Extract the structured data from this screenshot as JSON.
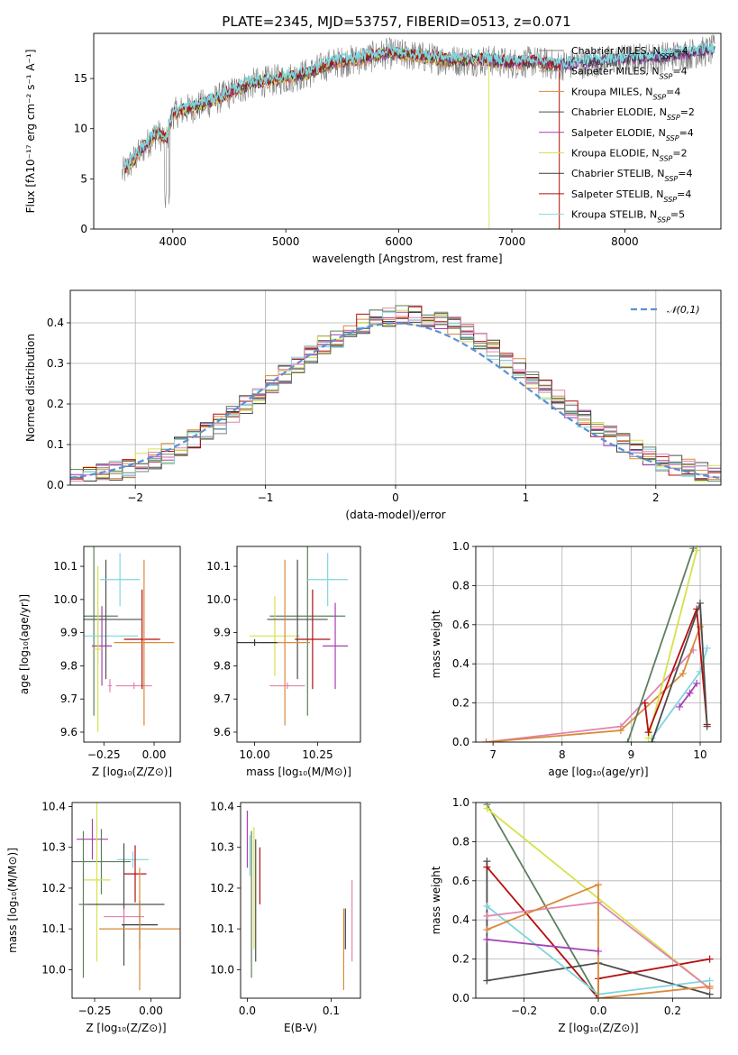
{
  "title": "PLATE=2345, MJD=53757, FIBERID=0513, z=0.071",
  "series_colors": [
    "#7f7f7f",
    "#9d9d9d",
    "#d98a3a",
    "#4d4d4d",
    "#a83fb5",
    "#d6e24a",
    "#3a3a3a",
    "#b40f0f",
    "#7fd6de"
  ],
  "chart_data": [
    {
      "type": "line",
      "title": "PLATE=2345, MJD=53757, FIBERID=0513, z=0.071",
      "xlabel": "wavelength [Angstrom, rest frame]",
      "ylabel": "Flux [fλ10⁻¹⁷ erg cm⁻² s⁻¹ A⁻¹]",
      "xlim": [
        3300,
        8850
      ],
      "ylim": [
        0,
        19.5
      ],
      "xticks": [
        4000,
        5000,
        6000,
        7000,
        8000
      ],
      "yticks": [
        0,
        5,
        10,
        15
      ],
      "legend_position": "top-right",
      "grid": false,
      "legend": [
        {
          "base": "Chabrier MILES, N",
          "sub": "SSP",
          "tail": "=4",
          "color": "#7f7f7f"
        },
        {
          "base": "Salpeter MILES, N",
          "sub": "SSP",
          "tail": "=4",
          "color": "#9d9d9d"
        },
        {
          "base": "Kroupa MILES, N",
          "sub": "SSP",
          "tail": "=4",
          "color": "#d98a3a"
        },
        {
          "base": "Chabrier ELODIE, N",
          "sub": "SSP",
          "tail": "=2",
          "color": "#4d4d4d"
        },
        {
          "base": "Salpeter ELODIE, N",
          "sub": "SSP",
          "tail": "=4",
          "color": "#a83fb5"
        },
        {
          "base": "Kroupa ELODIE, N",
          "sub": "SSP",
          "tail": "=2",
          "color": "#d6e24a"
        },
        {
          "base": "Chabrier STELIB, N",
          "sub": "SSP",
          "tail": "=4",
          "color": "#3a3a3a"
        },
        {
          "base": "Salpeter STELIB, N",
          "sub": "SSP",
          "tail": "=4",
          "color": "#b40f0f"
        },
        {
          "base": "Kroupa STELIB, N",
          "sub": "SSP",
          "tail": "=5",
          "color": "#7fd6de"
        }
      ],
      "spectrum_continuum": {
        "x": [
          3550,
          3700,
          3850,
          3950,
          4000,
          4150,
          4300,
          4500,
          4700,
          5000,
          5200,
          5400,
          5700,
          5900,
          6100,
          6300,
          6500,
          6800,
          7000,
          7200,
          7400,
          7700,
          8000,
          8300,
          8800
        ],
        "y": [
          5.5,
          7.5,
          9.5,
          9.0,
          11.5,
          12.0,
          12.5,
          13.5,
          14.5,
          15.0,
          15.5,
          16.5,
          17.0,
          17.5,
          17.3,
          17.0,
          16.8,
          16.8,
          16.5,
          16.7,
          16.3,
          16.6,
          16.9,
          17.1,
          17.8
        ]
      }
    },
    {
      "type": "step",
      "xlabel": "(data-model)/error",
      "ylabel": "Normed distribution",
      "xlim": [
        -2.5,
        2.5
      ],
      "ylim": [
        0,
        0.48
      ],
      "xticks": [
        -2,
        -1,
        0,
        1,
        2
      ],
      "xtick_labels": [
        "−2",
        "−1",
        "0",
        "1",
        "2"
      ],
      "yticks": [
        0.0,
        0.1,
        0.2,
        0.3,
        0.4
      ],
      "grid": true,
      "legend_position": "top-right",
      "reference_curve": {
        "label": "𝒩(0,1)",
        "color": "#5b8fd6",
        "style": "dashed"
      },
      "bin_width": 0.1,
      "n_bins": 50
    },
    {
      "type": "errorbar",
      "xlabel": "Z [log₁₀(Z/Z⊙)]",
      "ylabel": "age  [log₁₀(age/yr)]",
      "xlim": [
        -0.35,
        0.13
      ],
      "ylim": [
        9.57,
        10.16
      ],
      "xticks": [
        -0.25,
        0.0
      ],
      "xtick_labels": [
        "−0.25",
        "0.00"
      ],
      "yticks": [
        9.6,
        9.7,
        9.8,
        9.9,
        10.0,
        10.1
      ],
      "points": [
        {
          "x": -0.3,
          "y": 9.95,
          "xerr": 0.12,
          "yerr": 0.3,
          "color": "#5e7f5e"
        },
        {
          "x": -0.28,
          "y": 9.89,
          "xerr": 0.2,
          "yerr": 0.08,
          "color": "#7fd6de"
        },
        {
          "x": -0.26,
          "y": 9.86,
          "xerr": 0.05,
          "yerr": 0.12,
          "color": "#a83fb5"
        },
        {
          "x": -0.24,
          "y": 9.94,
          "xerr": 0.18,
          "yerr": 0.18,
          "color": "#4d4d4d"
        },
        {
          "x": -0.17,
          "y": 10.06,
          "xerr": 0.1,
          "yerr": 0.08,
          "color": "#7fd6de"
        },
        {
          "x": -0.22,
          "y": 9.74,
          "xerr": 0.01,
          "yerr": 0.02,
          "color": "#e284b0"
        },
        {
          "x": -0.1,
          "y": 9.74,
          "xerr": 0.09,
          "yerr": 0.01,
          "color": "#e284b0"
        },
        {
          "x": -0.06,
          "y": 9.88,
          "xerr": 0.09,
          "yerr": 0.15,
          "color": "#b40f0f"
        },
        {
          "x": -0.05,
          "y": 9.87,
          "xerr": 0.15,
          "yerr": 0.25,
          "color": "#d98a3a"
        },
        {
          "x": -0.28,
          "y": 9.85,
          "xerr": 0.02,
          "yerr": 0.25,
          "color": "#d6e24a"
        }
      ]
    },
    {
      "type": "errorbar",
      "xlabel": "mass [log₁₀(M/M⊙)]",
      "ylabel": "",
      "xlim": [
        9.93,
        10.42
      ],
      "ylim": [
        9.57,
        10.16
      ],
      "xticks": [
        10.0,
        10.25
      ],
      "xtick_labels": [
        "10.00",
        "10.25"
      ],
      "yticks": [
        9.6,
        9.7,
        9.8,
        9.9,
        10.0,
        10.1
      ],
      "points": [
        {
          "x": 10.21,
          "y": 9.95,
          "xerr": 0.15,
          "yerr": 0.3,
          "color": "#5e7f5e"
        },
        {
          "x": 10.08,
          "y": 9.89,
          "xerr": 0.1,
          "yerr": 0.12,
          "color": "#d6e24a"
        },
        {
          "x": 10.32,
          "y": 9.86,
          "xerr": 0.05,
          "yerr": 0.13,
          "color": "#a83fb5"
        },
        {
          "x": 10.17,
          "y": 9.94,
          "xerr": 0.12,
          "yerr": 0.18,
          "color": "#4d4d4d"
        },
        {
          "x": 10.29,
          "y": 10.06,
          "xerr": 0.08,
          "yerr": 0.08,
          "color": "#7fd6de"
        },
        {
          "x": 10.13,
          "y": 9.74,
          "xerr": 0.07,
          "yerr": 0.01,
          "color": "#e284b0"
        },
        {
          "x": 10.23,
          "y": 9.88,
          "xerr": 0.07,
          "yerr": 0.15,
          "color": "#b40f0f"
        },
        {
          "x": 10.12,
          "y": 9.87,
          "xerr": 0.1,
          "yerr": 0.25,
          "color": "#d98a3a"
        },
        {
          "x": 10.0,
          "y": 9.87,
          "xerr": 0.09,
          "yerr": 0.01,
          "color": "#3a3a3a"
        }
      ]
    },
    {
      "type": "line",
      "xlabel": "age  [log₁₀(age/yr)]",
      "ylabel": "mass weight",
      "xlim": [
        6.75,
        10.3
      ],
      "ylim": [
        0,
        1.0
      ],
      "xticks": [
        7,
        8,
        9,
        10
      ],
      "yticks": [
        0.0,
        0.2,
        0.4,
        0.6,
        0.8,
        1.0
      ],
      "grid": true,
      "series": [
        {
          "color": "#e284b0",
          "x": [
            6.9,
            8.85,
            9.9
          ],
          "y": [
            0.0,
            0.08,
            0.47
          ]
        },
        {
          "color": "#d98a3a",
          "x": [
            6.9,
            8.85,
            9.75,
            10.0
          ],
          "y": [
            0.0,
            0.06,
            0.35,
            0.59
          ]
        },
        {
          "color": "#7fd6de",
          "x": [
            9.3,
            10.0,
            10.1
          ],
          "y": [
            0.02,
            0.36,
            0.48
          ]
        },
        {
          "color": "#d6e24a",
          "x": [
            9.25,
            9.95
          ],
          "y": [
            0.02,
            0.98
          ]
        },
        {
          "color": "#5e7f5e",
          "x": [
            8.95,
            9.9
          ],
          "y": [
            0.0,
            0.99
          ]
        },
        {
          "color": "#a83fb5",
          "x": [
            9.7,
            9.85,
            9.95
          ],
          "y": [
            0.18,
            0.25,
            0.3
          ]
        },
        {
          "color": "#b40f0f",
          "x": [
            9.2,
            9.25,
            9.95,
            10.1
          ],
          "y": [
            0.2,
            0.05,
            0.68,
            0.09
          ]
        },
        {
          "color": "#4d4d4d",
          "x": [
            9.3,
            10.0,
            10.1
          ],
          "y": [
            0.0,
            0.71,
            0.08
          ]
        }
      ]
    },
    {
      "type": "errorbar",
      "xlabel": "Z [log₁₀(Z/Z⊙)]",
      "ylabel": "mass [log₁₀(M/M⊙)]",
      "xlim": [
        -0.35,
        0.13
      ],
      "ylim": [
        9.93,
        10.41
      ],
      "xticks": [
        -0.25,
        0.0
      ],
      "xtick_labels": [
        "−0.25",
        "0.00"
      ],
      "yticks": [
        10.0,
        10.1,
        10.2,
        10.3,
        10.4
      ],
      "points": [
        {
          "x": -0.26,
          "y": 10.32,
          "xerr": 0.07,
          "yerr": 0.05,
          "color": "#a83fb5"
        },
        {
          "x": -0.22,
          "y": 10.265,
          "xerr": 0.13,
          "yerr": 0.08,
          "color": "#5e7f5e"
        },
        {
          "x": -0.08,
          "y": 10.27,
          "xerr": 0.07,
          "yerr": 0.02,
          "color": "#7fd6de"
        },
        {
          "x": -0.07,
          "y": 10.235,
          "xerr": 0.05,
          "yerr": 0.07,
          "color": "#b40f0f"
        },
        {
          "x": -0.24,
          "y": 10.22,
          "xerr": 0.06,
          "yerr": 0.2,
          "color": "#d6e24a"
        },
        {
          "x": -0.12,
          "y": 10.16,
          "xerr": 0.18,
          "yerr": 0.15,
          "color": "#4d4d4d"
        },
        {
          "x": -0.12,
          "y": 10.13,
          "xerr": 0.09,
          "yerr": 0.02,
          "color": "#e284b0"
        },
        {
          "x": -0.05,
          "y": 10.11,
          "xerr": 0.08,
          "yerr": 0.06,
          "color": "#3a3a3a"
        },
        {
          "x": -0.05,
          "y": 10.1,
          "xerr": 0.18,
          "yerr": 0.15,
          "color": "#d98a3a"
        },
        {
          "x": -0.3,
          "y": 10.16,
          "xerr": 0.02,
          "yerr": 0.18,
          "color": "#5e7f5e"
        }
      ]
    },
    {
      "type": "errorbar",
      "xlabel": "E(B-V)",
      "ylabel": "",
      "xlim": [
        -0.008,
        0.135
      ],
      "ylim": [
        9.93,
        10.41
      ],
      "xticks": [
        0.0,
        0.1
      ],
      "xtick_labels": [
        "0.0",
        "0.1"
      ],
      "yticks": [
        10.0,
        10.1,
        10.2,
        10.3,
        10.4
      ],
      "points": [
        {
          "x": 0.0,
          "y": 10.32,
          "xerr": 0.0,
          "yerr": 0.07,
          "color": "#a83fb5"
        },
        {
          "x": 0.005,
          "y": 10.16,
          "xerr": 0.0,
          "yerr": 0.18,
          "color": "#5e7f5e"
        },
        {
          "x": 0.008,
          "y": 10.2,
          "xerr": 0.0,
          "yerr": 0.15,
          "color": "#d6e24a"
        },
        {
          "x": 0.01,
          "y": 10.17,
          "xerr": 0.0,
          "yerr": 0.15,
          "color": "#4d4d4d"
        },
        {
          "x": 0.015,
          "y": 10.23,
          "xerr": 0.0,
          "yerr": 0.07,
          "color": "#b40f0f"
        },
        {
          "x": 0.003,
          "y": 10.28,
          "xerr": 0.0,
          "yerr": 0.05,
          "color": "#7fd6de"
        },
        {
          "x": 0.115,
          "y": 10.05,
          "xerr": 0.0,
          "yerr": 0.1,
          "color": "#d98a3a"
        },
        {
          "x": 0.117,
          "y": 10.1,
          "xerr": 0.0,
          "yerr": 0.05,
          "color": "#3a3a3a"
        },
        {
          "x": 0.125,
          "y": 10.12,
          "xerr": 0.0,
          "yerr": 0.1,
          "color": "#e284b0"
        }
      ]
    },
    {
      "type": "line",
      "xlabel": "Z [log₁₀(Z/Z⊙)]",
      "ylabel": "mass weight",
      "xlim": [
        -0.33,
        0.33
      ],
      "ylim": [
        0,
        1.0
      ],
      "xticks": [
        -0.2,
        0.0,
        0.2
      ],
      "xtick_labels": [
        "−0.2",
        "0.0",
        "0.2"
      ],
      "yticks": [
        0.0,
        0.2,
        0.4,
        0.6,
        0.8,
        1.0
      ],
      "grid": true,
      "series": [
        {
          "color": "#5e7f5e",
          "x": [
            -0.3,
            0.0
          ],
          "y": [
            0.99,
            0.0
          ]
        },
        {
          "color": "#d6e24a",
          "x": [
            -0.3,
            0.3
          ],
          "y": [
            0.97,
            0.05
          ]
        },
        {
          "color": "#4d4d4d",
          "x": [
            -0.3,
            -0.3,
            0.0,
            0.3
          ],
          "y": [
            0.7,
            0.09,
            0.18,
            0.02
          ]
        },
        {
          "color": "#b40f0f",
          "x": [
            -0.3,
            0.0,
            0.0,
            0.3
          ],
          "y": [
            0.67,
            0.0,
            0.1,
            0.2
          ]
        },
        {
          "color": "#7fd6de",
          "x": [
            -0.3,
            0.0,
            0.3
          ],
          "y": [
            0.47,
            0.02,
            0.09
          ]
        },
        {
          "color": "#e284b0",
          "x": [
            -0.3,
            0.0,
            0.3
          ],
          "y": [
            0.42,
            0.49,
            0.05
          ]
        },
        {
          "color": "#d98a3a",
          "x": [
            -0.3,
            0.0,
            0.0,
            0.3
          ],
          "y": [
            0.35,
            0.58,
            0.0,
            0.06
          ]
        },
        {
          "color": "#a83fb5",
          "x": [
            -0.3,
            0.0
          ],
          "y": [
            0.3,
            0.24
          ]
        }
      ]
    }
  ]
}
